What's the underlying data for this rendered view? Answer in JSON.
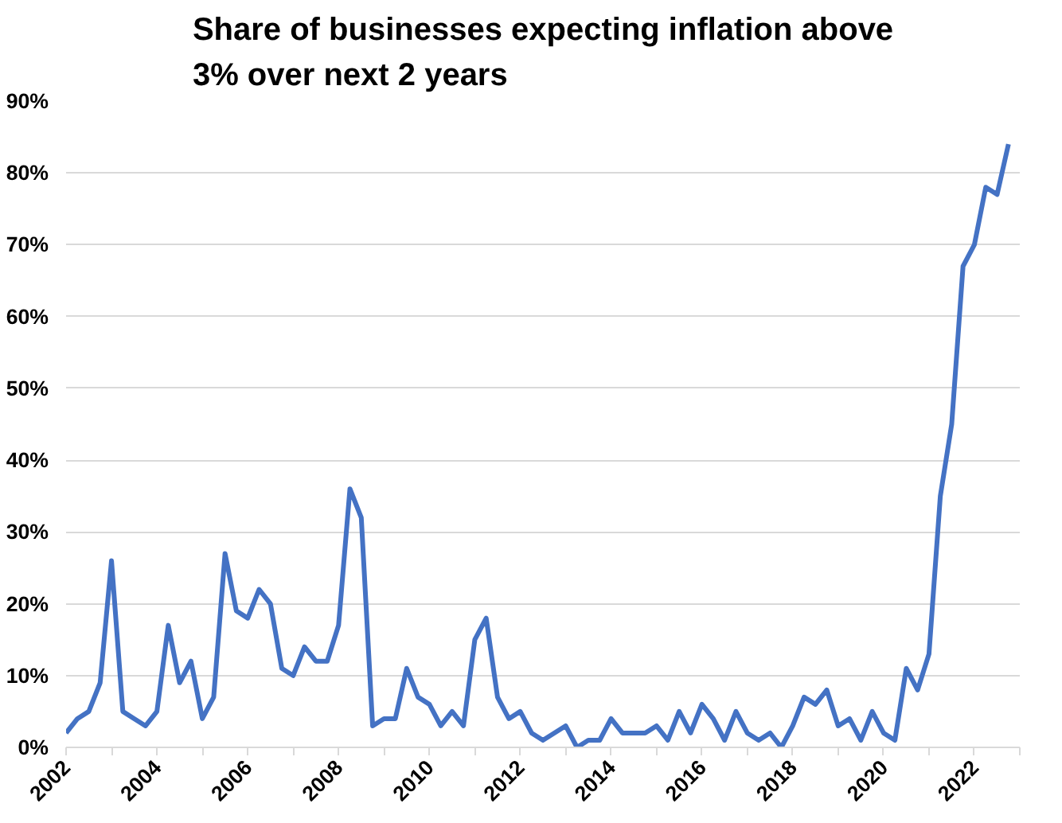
{
  "chart_data": {
    "type": "line",
    "title": "Share of businesses expecting inflation above\n3% over next 2 years",
    "x": [
      2002,
      2002.25,
      2002.5,
      2002.75,
      2003,
      2003.25,
      2003.5,
      2003.75,
      2004,
      2004.25,
      2004.5,
      2004.75,
      2005,
      2005.25,
      2005.5,
      2005.75,
      2006,
      2006.25,
      2006.5,
      2006.75,
      2007,
      2007.25,
      2007.5,
      2007.75,
      2008,
      2008.25,
      2008.5,
      2008.75,
      2009,
      2009.25,
      2009.5,
      2009.75,
      2010,
      2010.25,
      2010.5,
      2010.75,
      2011,
      2011.25,
      2011.5,
      2011.75,
      2012,
      2012.25,
      2012.5,
      2012.75,
      2013,
      2013.25,
      2013.5,
      2013.75,
      2014,
      2014.25,
      2014.5,
      2014.75,
      2015,
      2015.25,
      2015.5,
      2015.75,
      2016,
      2016.25,
      2016.5,
      2016.75,
      2017,
      2017.25,
      2017.5,
      2017.75,
      2018,
      2018.25,
      2018.5,
      2018.75,
      2019,
      2019.25,
      2019.5,
      2019.75,
      2020,
      2020.25,
      2020.5,
      2020.75,
      2021,
      2021.25,
      2021.5,
      2021.75,
      2022,
      2022.25,
      2022.5,
      2022.75
    ],
    "series": [
      {
        "color": "#4472c4",
        "values": [
          2,
          4,
          5,
          9,
          26,
          5,
          4,
          3,
          5,
          17,
          9,
          12,
          4,
          7,
          27,
          19,
          18,
          22,
          20,
          11,
          10,
          14,
          12,
          12,
          17,
          36,
          32,
          3,
          4,
          4,
          11,
          7,
          6,
          3,
          5,
          3,
          15,
          18,
          7,
          4,
          5,
          2,
          1,
          2,
          3,
          0,
          1,
          1,
          4,
          2,
          2,
          2,
          3,
          1,
          5,
          2,
          6,
          4,
          1,
          5,
          2,
          1,
          2,
          0,
          3,
          7,
          6,
          8,
          3,
          4,
          1,
          5,
          2,
          1,
          11,
          8,
          13,
          35,
          45,
          67,
          70,
          78,
          77,
          84
        ]
      }
    ],
    "xlim": [
      2002,
      2023
    ],
    "xticks": [
      2002,
      {
        "value": 2003,
        "label": null
      },
      2004,
      {
        "value": 2005,
        "label": null
      },
      2006,
      {
        "value": 2007,
        "label": null
      },
      2008,
      {
        "value": 2009,
        "label": null
      },
      2010,
      {
        "value": 2011,
        "label": null
      },
      2012,
      {
        "value": 2013,
        "label": null
      },
      2014,
      {
        "value": 2015,
        "label": null
      },
      2016,
      {
        "value": 2017,
        "label": null
      },
      2018,
      {
        "value": 2019,
        "label": null
      },
      2020,
      {
        "value": 2021,
        "label": null
      },
      2022,
      {
        "value": 2023,
        "label": null
      }
    ],
    "ylim": [
      0,
      90
    ],
    "yticks": [
      {
        "value": 0,
        "label": "0%"
      },
      {
        "value": 10,
        "label": "10%"
      },
      {
        "value": 20,
        "label": "20%"
      },
      {
        "value": 30,
        "label": "30%"
      },
      {
        "value": 40,
        "label": "40%"
      },
      {
        "value": 50,
        "label": "50%"
      },
      {
        "value": 60,
        "label": "60%"
      },
      {
        "value": 70,
        "label": "70%"
      },
      {
        "value": 80,
        "label": "80%"
      },
      {
        "value": 90,
        "label": "90%"
      }
    ],
    "grid": "y",
    "marker": "none",
    "line_style": "solid"
  }
}
